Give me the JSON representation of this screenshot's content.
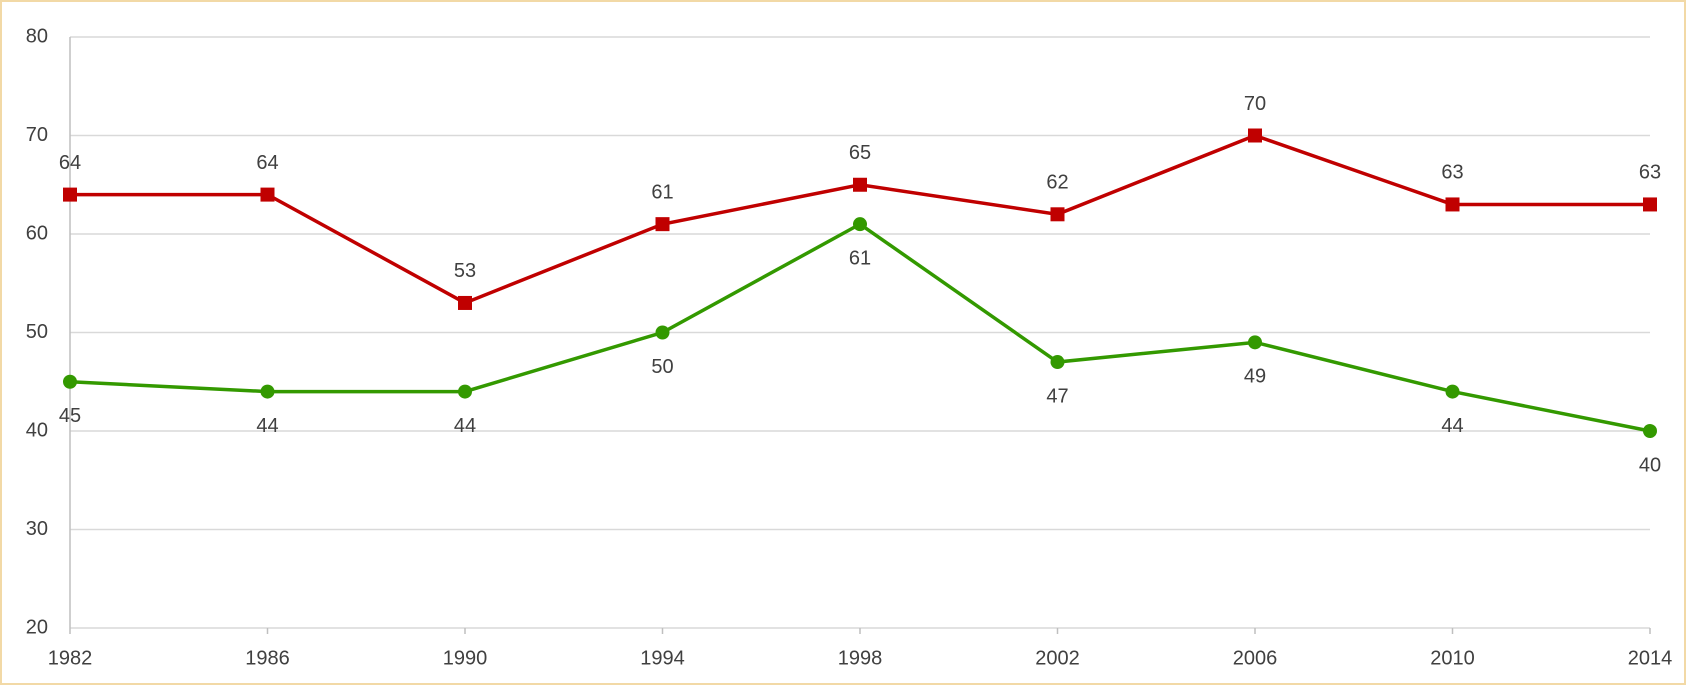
{
  "chart_data": {
    "type": "line",
    "x": [
      1982,
      1986,
      1990,
      1994,
      1998,
      2002,
      2006,
      2010,
      2014
    ],
    "series": [
      {
        "color": "#c00000",
        "marker": "square",
        "label_position": "above",
        "values": [
          64,
          64,
          53,
          61,
          65,
          62,
          70,
          63,
          63
        ]
      },
      {
        "color": "#339900",
        "marker": "circle",
        "label_position": "below",
        "values": [
          45,
          44,
          44,
          50,
          61,
          47,
          49,
          44,
          40
        ]
      }
    ],
    "xlim": [
      1982,
      2014
    ],
    "xticks": [
      1982,
      1986,
      1990,
      1994,
      1998,
      2002,
      2006,
      2010,
      2014
    ],
    "ylim": [
      20,
      80
    ],
    "yticks": [
      20,
      30,
      40,
      50,
      60,
      70,
      80
    ],
    "grid": true
  }
}
